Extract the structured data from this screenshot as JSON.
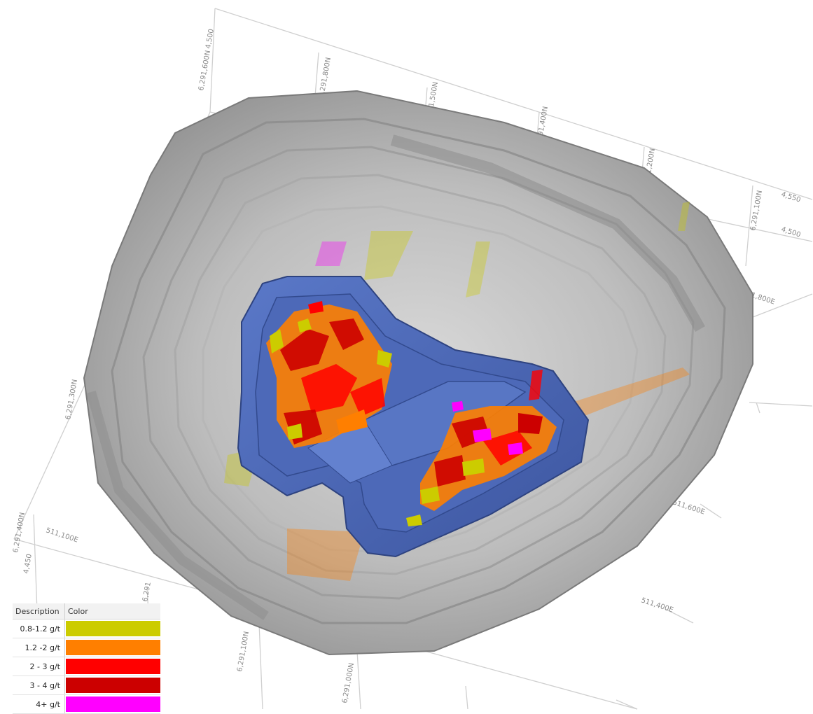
{
  "legend": {
    "header_description": "Description",
    "header_color": "Color",
    "rows": [
      {
        "label": "0.8-1.2 g/t",
        "color": "#cccc00"
      },
      {
        "label": "1.2 -2 g/t",
        "color": "#ff7f00"
      },
      {
        "label": "2 - 3 g/t",
        "color": "#ff0000"
      },
      {
        "label": "3 - 4 g/t",
        "color": "#cc0000"
      },
      {
        "label": "4+ g/t",
        "color": "#ff00ff"
      }
    ]
  },
  "colors": {
    "pit_surface": "#b3b3b3",
    "pit_design": "#4a66b0",
    "grid_lines": "#cfcfcf",
    "low_grade": "#cccc00",
    "mid_grade": "#ff7f00",
    "high_grade": "#ff0000",
    "very_high_grade": "#cc0000",
    "top_grade": "#ff00ff"
  },
  "icons": [
    "3d-grid-box",
    "pit-surface-mesh",
    "pit-design-shell",
    "grade-blocks"
  ]
}
